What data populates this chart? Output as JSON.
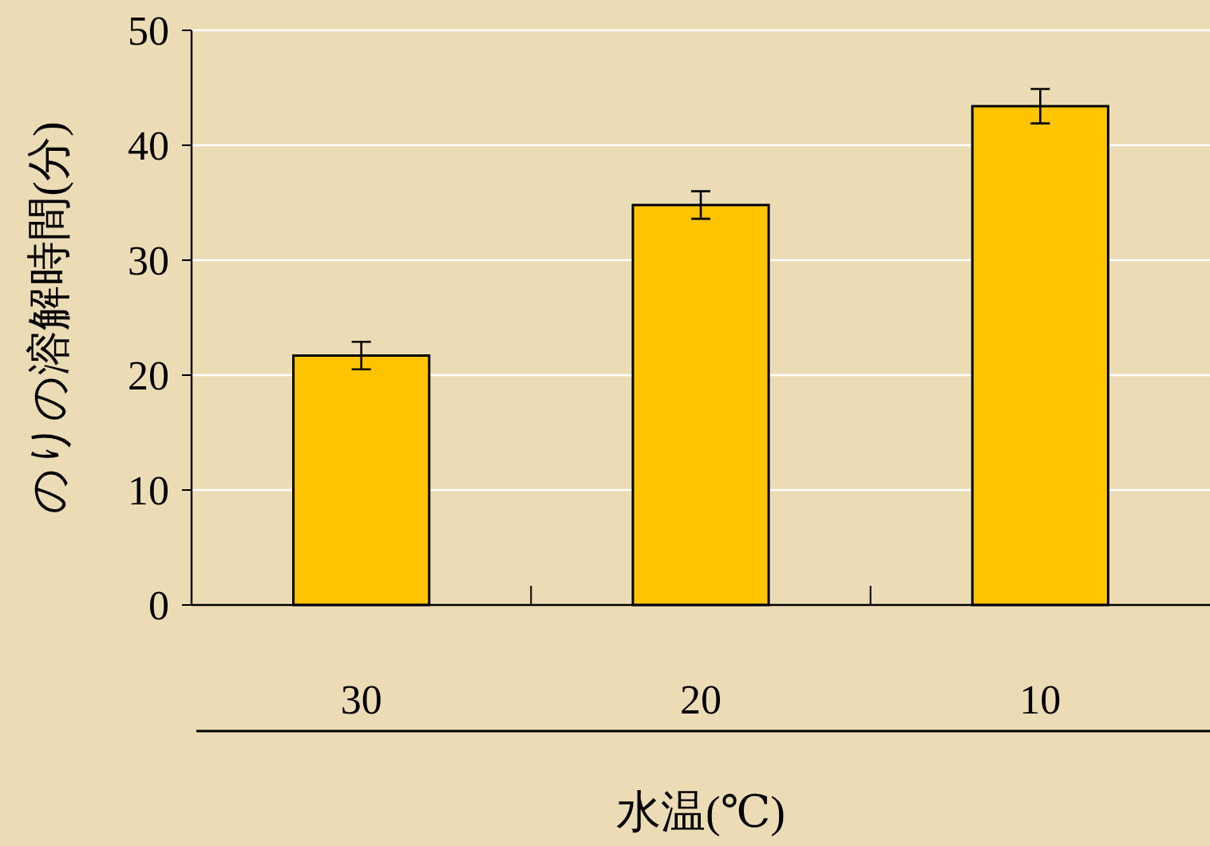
{
  "chart_data": {
    "type": "bar",
    "xlabel": "水温(℃)",
    "ylabel": "のりの溶解時間(分)",
    "categories": [
      "30",
      "20",
      "10"
    ],
    "values": [
      21.7,
      34.8,
      43.4
    ],
    "errors": [
      1.2,
      1.2,
      1.5
    ],
    "color": "#ffc400",
    "ylim": [
      0,
      50
    ],
    "yticks": [
      0,
      10,
      20,
      30,
      40,
      50
    ],
    "grid": "y"
  }
}
